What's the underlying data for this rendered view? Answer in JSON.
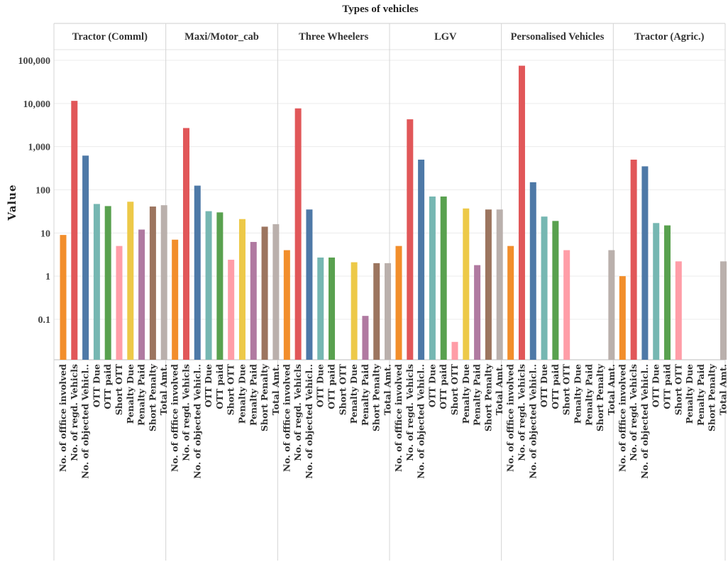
{
  "chart_data": {
    "type": "bar",
    "title": "Types of vehicles",
    "ylabel": "Value",
    "yscale": "log",
    "ylim": [
      0.02,
      150000
    ],
    "yticks": [
      0.1,
      1,
      10,
      100,
      1000,
      10000,
      100000
    ],
    "ytick_labels": [
      "0.1",
      "1",
      "10",
      "100",
      "1,000",
      "10,000",
      "100,000"
    ],
    "grid": true,
    "legend": "none",
    "measures": [
      {
        "name": "No. of offfice involved",
        "color": "#f28e2b"
      },
      {
        "name": "No. of regd. Vehicls",
        "color": "#e15759"
      },
      {
        "name": "No. of objected Vehicl..",
        "color": "#4e79a7"
      },
      {
        "name": "OTT Due",
        "color": "#76b7b2"
      },
      {
        "name": "OTT paid",
        "color": "#59a14f"
      },
      {
        "name": "Short OTT",
        "color": "#ff9da7"
      },
      {
        "name": "Penalty Due",
        "color": "#edc948"
      },
      {
        "name": "Penalty Paid",
        "color": "#b07aa1"
      },
      {
        "name": "Short Penalty",
        "color": "#9c755f"
      },
      {
        "name": "Total Amt.",
        "color": "#bab0ac"
      }
    ],
    "panels": [
      {
        "name": "Tractor (Comml)",
        "values": [
          9,
          11500,
          620,
          47,
          42,
          5,
          53,
          12,
          41,
          44
        ]
      },
      {
        "name": "Maxi/Motor_cab",
        "values": [
          7,
          2700,
          125,
          32,
          30,
          2.4,
          21,
          6.2,
          14,
          16
        ]
      },
      {
        "name": "Three Wheelers",
        "values": [
          4,
          7700,
          35,
          2.7,
          2.7,
          null,
          2.1,
          0.12,
          2,
          2
        ]
      },
      {
        "name": "LGV",
        "values": [
          5,
          4300,
          500,
          70,
          70,
          0.03,
          37,
          1.8,
          35,
          35
        ]
      },
      {
        "name": "Personalised Vehicles",
        "values": [
          5,
          75000,
          150,
          24,
          19,
          4,
          null,
          null,
          null,
          4
        ]
      },
      {
        "name": "Tractor (Agric.)",
        "values": [
          1,
          500,
          350,
          17,
          15,
          2.2,
          null,
          null,
          null,
          2.2
        ]
      }
    ]
  }
}
